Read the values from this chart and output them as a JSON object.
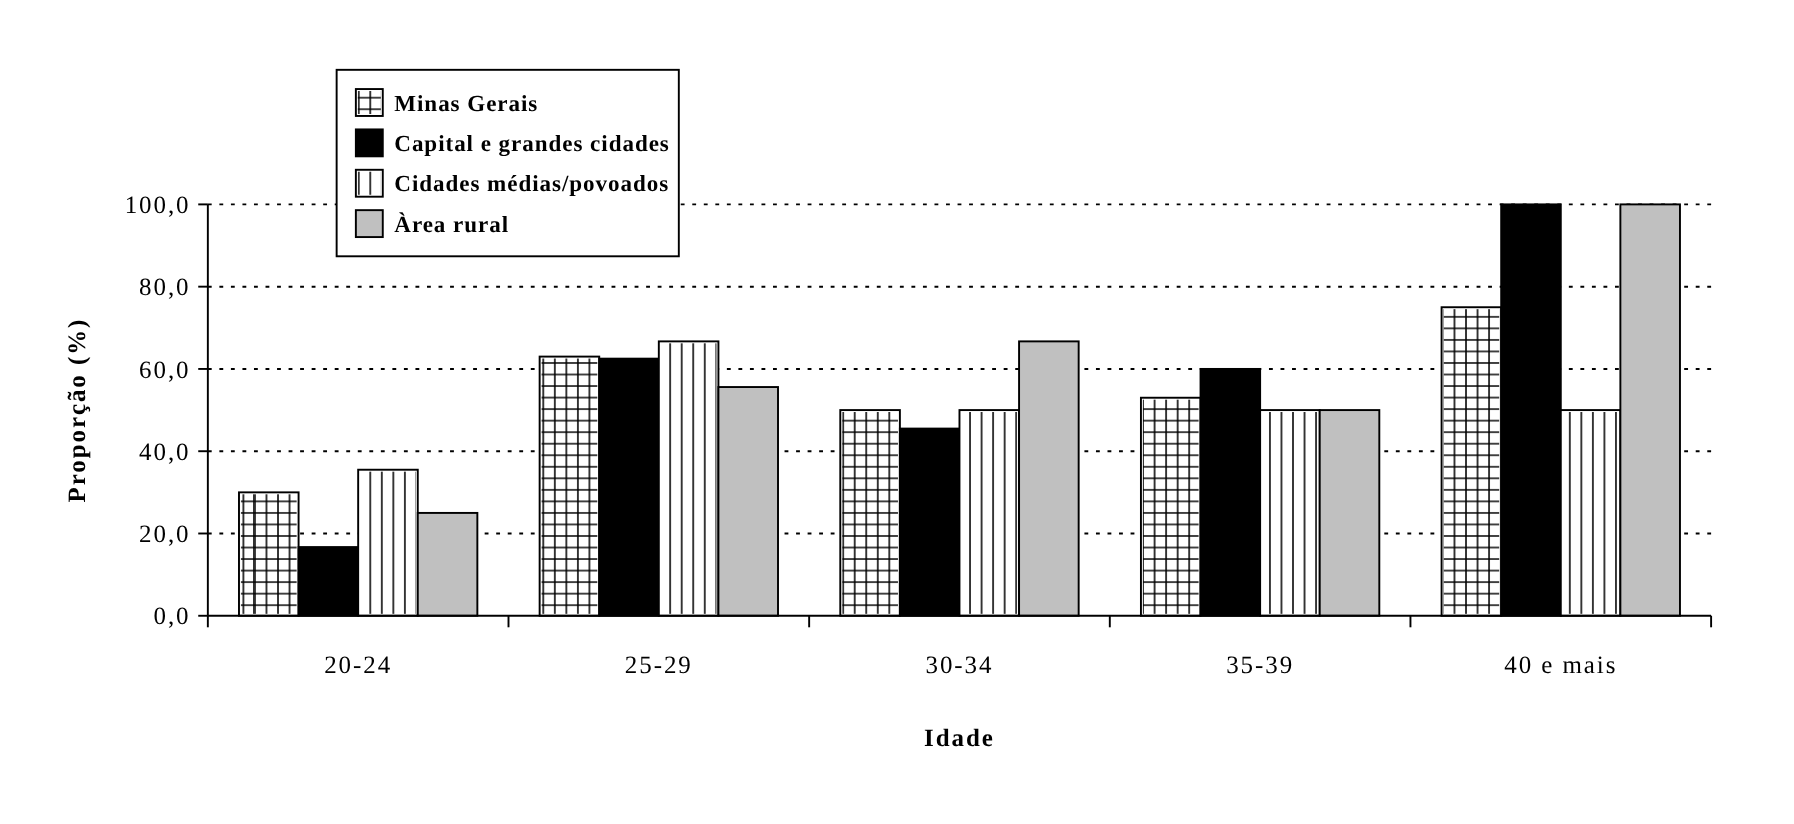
{
  "chart_data": {
    "type": "bar",
    "xlabel": "Idade",
    "ylabel": "Proporção (%)",
    "categories": [
      "20-24",
      "25-29",
      "30-34",
      "35-39",
      "40 e mais"
    ],
    "series": [
      {
        "name": "Minas Gerais",
        "color": "#ffffff",
        "values": [
          30,
          63,
          50,
          53,
          75
        ]
      },
      {
        "name": "Capital e grandes cidades",
        "color": "#000000",
        "values": [
          16.7,
          62.5,
          45.5,
          60,
          100
        ]
      },
      {
        "name": "Cidades médias/povoados",
        "color": "#ffffff",
        "values": [
          35.5,
          66.7,
          50,
          50,
          50
        ]
      },
      {
        "name": "Àrea rural",
        "color": "#c0c0c0",
        "values": [
          25,
          55.6,
          66.7,
          50,
          100
        ]
      }
    ],
    "ylim": [
      0,
      100
    ],
    "yticks": [
      {
        "value": 0,
        "label": "0,0"
      },
      {
        "value": 20,
        "label": "20,0"
      },
      {
        "value": 40,
        "label": "40,0"
      },
      {
        "value": 60,
        "label": "60,0"
      },
      {
        "value": 80,
        "label": "80,0"
      },
      {
        "value": 100,
        "label": "100,0"
      }
    ],
    "grid": "y",
    "legend": "top left"
  }
}
